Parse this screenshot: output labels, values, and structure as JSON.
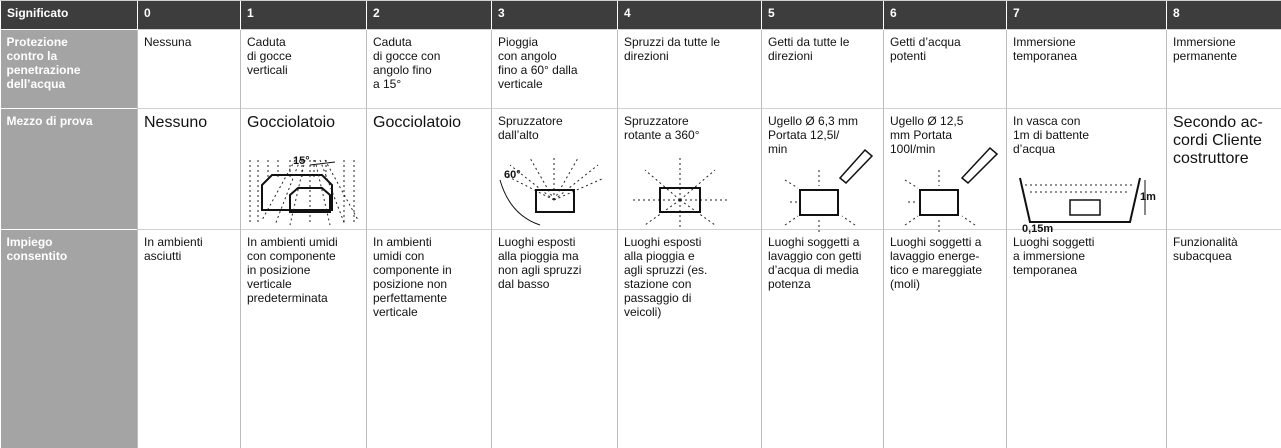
{
  "table": {
    "header": [
      "Significato",
      "0",
      "1",
      "2",
      "3",
      "4",
      "5",
      "6",
      "7",
      "8"
    ],
    "rows": [
      {
        "label": "Protezione\ncontro la\npenetrazione\ndell’acqua",
        "cells": [
          "Nessuna",
          "Caduta\ndi gocce\nverticali",
          "Caduta\ndi gocce con\nangolo fino\na 15°",
          "Pioggia\ncon angolo\nfino a 60° dalla\nverticale",
          "Spruzzi da tutte le\ndirezioni",
          "Getti da tutte le\ndirezioni",
          "Getti d’acqua\npotenti",
          "Immersione\ntemporanea",
          "Immersione\npermanente"
        ]
      },
      {
        "label": "Mezzo di prova",
        "cells": [
          "Nessuno",
          "Gocciolatoio",
          "Gocciolatoio",
          "Spruzzatore\ndall’alto",
          "Spruzzatore\nrotante a 360°",
          "Ugello Ø 6,3 mm\nPortata 12,5l/\nmin",
          "Ugello Ø 12,5\nmm Portata\n100l/min",
          "In vasca con\n1m di battente\nd’acqua",
          "Secondo ac-\ncordi Cliente\ncostruttore"
        ],
        "figure_labels": [
          "15°",
          "60°",
          "1m",
          "0,15m"
        ]
      },
      {
        "label": "Impiego\nconsentito",
        "cells": [
          "In ambienti\nasciutti",
          "In ambienti umidi\ncon componente\nin posizione\nverticale\npredeterminata",
          "In ambienti\numidi con\ncomponente in\nposizione non\nperfettamente\nverticale",
          "Luoghi esposti\nalla pioggia ma\nnon agli spruzzi\ndal basso",
          "Luoghi esposti\nalla pioggia e\nagli spruzzi (es.\nstazione con\npassaggio di\nveicoli)",
          "Luoghi soggetti a\nlavaggio con getti\nd’acqua di media\npotenza",
          "Luoghi soggetti a\nlavaggio energe-\ntico e mareggiate\n(moli)",
          "Luoghi soggetti\na immersione\ntemporanea",
          "Funzionalità\nsubacquea"
        ]
      }
    ]
  }
}
